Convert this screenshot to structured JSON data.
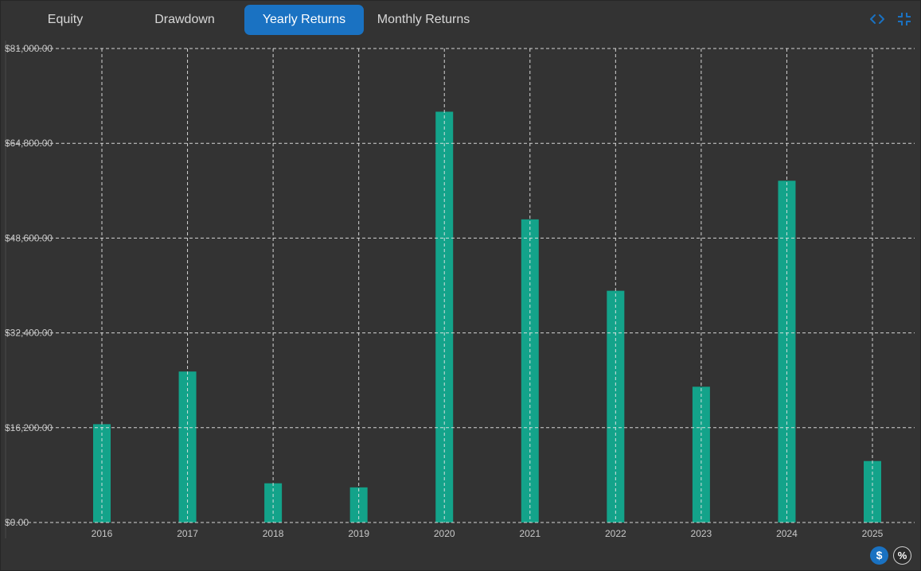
{
  "tabs": [
    {
      "label": "Equity",
      "active": false
    },
    {
      "label": "Drawdown",
      "active": false
    },
    {
      "label": "Yearly Returns",
      "active": true
    },
    {
      "label": "Monthly Returns",
      "active": false
    }
  ],
  "top_icons": [
    "code-icon",
    "collapse-icon"
  ],
  "toggles": {
    "dollar_label": "$",
    "percent_label": "%",
    "active": "dollar"
  },
  "colors": {
    "accent": "#1a72c2",
    "bar": "#13a38a",
    "background": "#333333",
    "grid": "#e6e6e6",
    "tick_text": "#c8c8c8"
  },
  "chart_data": {
    "type": "bar",
    "categories": [
      "2016",
      "2017",
      "2018",
      "2019",
      "2020",
      "2021",
      "2022",
      "2023",
      "2024",
      "2025"
    ],
    "values": [
      16800,
      25800,
      6700,
      6000,
      70200,
      51800,
      39600,
      23200,
      58400,
      10500
    ],
    "ylim": [
      0,
      81000
    ],
    "yticks": [
      0,
      16200,
      32400,
      48600,
      64800,
      81000
    ],
    "ytick_labels": [
      "$0.00",
      "$16,200.00",
      "$32,400.00",
      "$48,600.00",
      "$64,800.00",
      "$81,000.00"
    ],
    "title": "",
    "xlabel": "",
    "ylabel": "",
    "grid": true,
    "grid_style": "dashed"
  }
}
